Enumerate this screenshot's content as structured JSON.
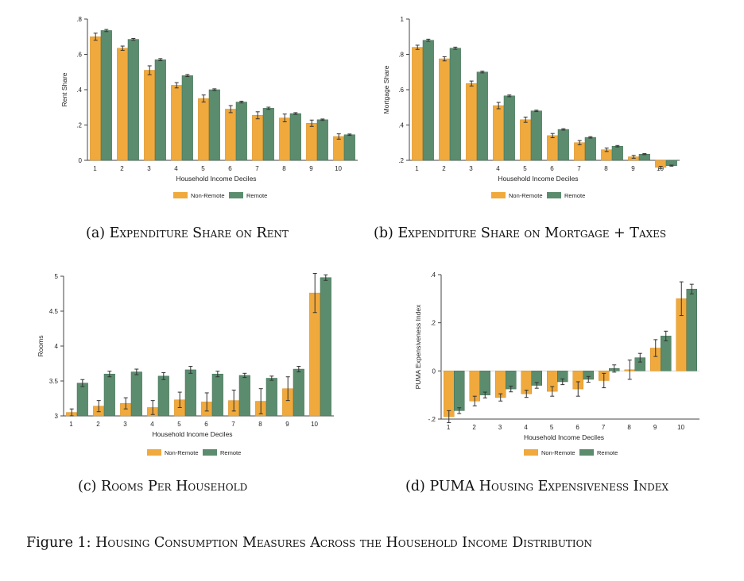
{
  "colors": {
    "non_remote": "#F0A93C",
    "remote": "#5B8C6E",
    "axis": "#444444",
    "errorbar": "#333333"
  },
  "legend_labels": {
    "non_remote": "Non-Remote",
    "remote": "Remote"
  },
  "captions": {
    "a": {
      "label": "(a)",
      "text": "Expenditure Share on Rent"
    },
    "b": {
      "label": "(b)",
      "text": "Expenditure Share on Mortgage + Taxes"
    },
    "c": {
      "label": "(c)",
      "text": "Rooms Per Household"
    },
    "d": {
      "label": "(d)",
      "text": "PUMA Housing Expensiveness Index"
    }
  },
  "figure_caption": {
    "label": "Figure 1:",
    "text": "Housing Consumption Measures Across the Household Income Distribution"
  },
  "chart_data": [
    {
      "id": "a",
      "type": "bar",
      "xlabel": "Household Income Deciles",
      "ylabel": "Rent Share",
      "categories": [
        "1",
        "2",
        "3",
        "4",
        "5",
        "6",
        "7",
        "8",
        "9",
        "10"
      ],
      "ylim": [
        0,
        0.8
      ],
      "yticks": [
        0,
        0.2,
        0.4,
        0.6,
        0.8
      ],
      "ytick_labels": [
        "0",
        ".2",
        ".4",
        ".6",
        ".8"
      ],
      "series": [
        {
          "name": "Non-Remote",
          "values": [
            0.7,
            0.635,
            0.51,
            0.425,
            0.35,
            0.29,
            0.255,
            0.24,
            0.21,
            0.135
          ],
          "err": [
            0.02,
            0.012,
            0.025,
            0.015,
            0.02,
            0.02,
            0.02,
            0.022,
            0.018,
            0.015
          ]
        },
        {
          "name": "Remote",
          "values": [
            0.735,
            0.685,
            0.57,
            0.48,
            0.4,
            0.33,
            0.295,
            0.265,
            0.23,
            0.145
          ],
          "err": [
            0.006,
            0.005,
            0.006,
            0.006,
            0.005,
            0.005,
            0.006,
            0.005,
            0.004,
            0.004
          ]
        }
      ]
    },
    {
      "id": "b",
      "type": "bar",
      "xlabel": "Household Income Deciles",
      "ylabel": "Mortgage Share",
      "categories": [
        "1",
        "2",
        "3",
        "4",
        "5",
        "6",
        "7",
        "8",
        "9",
        "10"
      ],
      "ylim": [
        0.2,
        1.0
      ],
      "yticks": [
        0.2,
        0.4,
        0.6,
        0.8,
        1.0
      ],
      "ytick_labels": [
        ".2",
        ".4",
        ".6",
        ".8",
        "1"
      ],
      "series": [
        {
          "name": "Non-Remote",
          "values": [
            0.84,
            0.775,
            0.635,
            0.51,
            0.43,
            0.34,
            0.3,
            0.26,
            0.22,
            0.16
          ],
          "err": [
            0.012,
            0.012,
            0.014,
            0.018,
            0.015,
            0.012,
            0.012,
            0.01,
            0.008,
            0.006
          ]
        },
        {
          "name": "Remote",
          "values": [
            0.88,
            0.835,
            0.7,
            0.565,
            0.48,
            0.375,
            0.33,
            0.28,
            0.235,
            0.17
          ],
          "err": [
            0.006,
            0.006,
            0.005,
            0.005,
            0.004,
            0.004,
            0.004,
            0.004,
            0.003,
            0.003
          ]
        }
      ]
    },
    {
      "id": "c",
      "type": "bar",
      "xlabel": "Household Income Deciles",
      "ylabel": "Rooms",
      "categories": [
        "1",
        "2",
        "3",
        "4",
        "5",
        "6",
        "7",
        "8",
        "9",
        "10"
      ],
      "ylim": [
        3.0,
        5.0
      ],
      "yticks": [
        3.0,
        3.5,
        4.0,
        4.5,
        5.0
      ],
      "ytick_labels": [
        "3",
        "3.5",
        "4",
        "4.5",
        "5"
      ],
      "series": [
        {
          "name": "Non-Remote",
          "values": [
            3.05,
            3.14,
            3.18,
            3.12,
            3.23,
            3.2,
            3.22,
            3.21,
            3.39,
            4.76
          ],
          "err": [
            0.05,
            0.08,
            0.08,
            0.1,
            0.11,
            0.13,
            0.15,
            0.18,
            0.17,
            0.28
          ]
        },
        {
          "name": "Remote",
          "values": [
            3.47,
            3.6,
            3.63,
            3.57,
            3.66,
            3.6,
            3.58,
            3.54,
            3.67,
            4.98
          ],
          "err": [
            0.05,
            0.04,
            0.04,
            0.05,
            0.05,
            0.04,
            0.03,
            0.03,
            0.04,
            0.04
          ]
        }
      ]
    },
    {
      "id": "d",
      "type": "bar",
      "xlabel": "Household Income Deciles",
      "ylabel": "PUMA Expensiveness Index",
      "categories": [
        "1",
        "2",
        "3",
        "4",
        "5",
        "6",
        "7",
        "8",
        "9",
        "10"
      ],
      "ylim": [
        -0.2,
        0.4
      ],
      "yticks": [
        -0.2,
        0.0,
        0.2,
        0.4
      ],
      "ytick_labels": [
        "-.2",
        "0",
        ".2",
        ".4"
      ],
      "series": [
        {
          "name": "Non-Remote",
          "values": [
            -0.19,
            -0.125,
            -0.11,
            -0.095,
            -0.085,
            -0.075,
            -0.04,
            0.005,
            0.095,
            0.3
          ],
          "err": [
            0.025,
            0.02,
            0.015,
            0.015,
            0.02,
            0.03,
            0.03,
            0.04,
            0.035,
            0.07
          ]
        },
        {
          "name": "Remote",
          "values": [
            -0.165,
            -0.1,
            -0.075,
            -0.06,
            -0.045,
            -0.035,
            0.01,
            0.055,
            0.145,
            0.34
          ],
          "err": [
            0.012,
            0.012,
            0.012,
            0.012,
            0.012,
            0.012,
            0.015,
            0.018,
            0.02,
            0.02
          ]
        }
      ]
    }
  ]
}
